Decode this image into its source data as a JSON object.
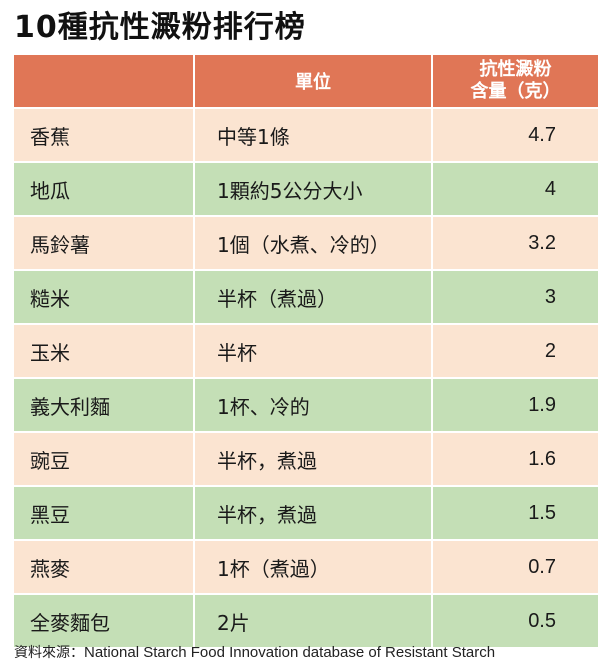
{
  "title": "10種抗性澱粉排行榜",
  "header": {
    "col1": "",
    "col2": "單位",
    "col3_line1": "抗性澱粉",
    "col3_line2": "含量（克）"
  },
  "rows": [
    {
      "food": "香蕉",
      "unit": "中等1條",
      "amount": "4.7"
    },
    {
      "food": "地瓜",
      "unit": "1顆約5公分大小",
      "amount": "4"
    },
    {
      "food": "馬鈴薯",
      "unit": "1個（水煮、冷的）",
      "amount": "3.2"
    },
    {
      "food": "糙米",
      "unit": "半杯（煮過）",
      "amount": "3"
    },
    {
      "food": "玉米",
      "unit": "半杯",
      "amount": "2"
    },
    {
      "food": "義大利麵",
      "unit": "1杯、冷的",
      "amount": "1.9"
    },
    {
      "food": "豌豆",
      "unit": "半杯，煮過",
      "amount": "1.6"
    },
    {
      "food": "黑豆",
      "unit": "半杯，煮過",
      "amount": "1.5"
    },
    {
      "food": "燕麥",
      "unit": "1杯（煮過）",
      "amount": "0.7"
    },
    {
      "food": "全麥麵包",
      "unit": "2片",
      "amount": "0.5"
    }
  ],
  "source": {
    "label": "資料來源：",
    "text": "National Starch Food Innovation database of Resistant Starch"
  },
  "colors": {
    "header": "#e07656",
    "row_peach": "#fbe4d1",
    "row_green": "#c4dfb6"
  }
}
